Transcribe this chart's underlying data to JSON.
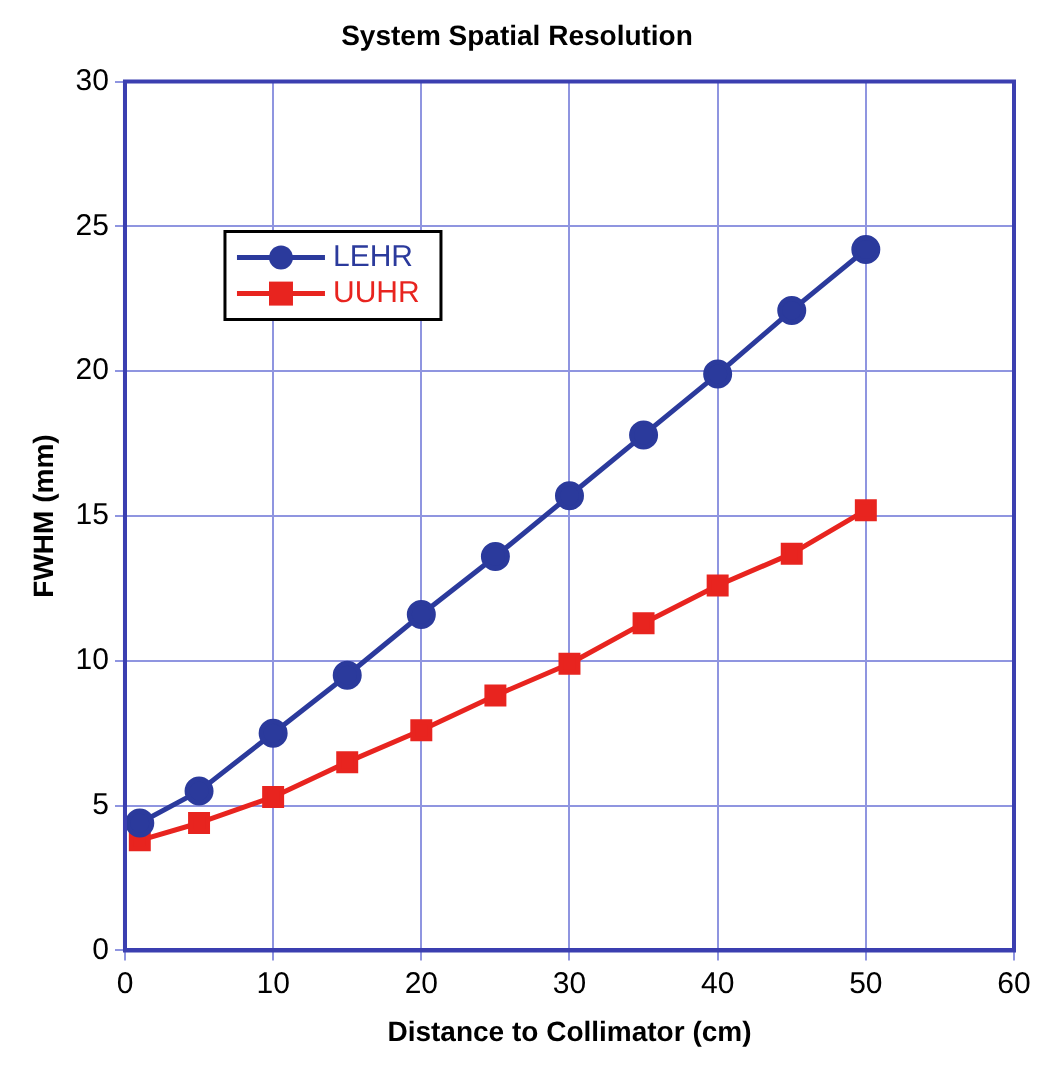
{
  "chart_data": {
    "type": "line",
    "title": "System Spatial Resolution",
    "xlabel": "Distance to Collimator (cm)",
    "ylabel": "FWHM (mm)",
    "x": [
      1,
      5,
      10,
      15,
      20,
      25,
      30,
      35,
      40,
      45,
      50
    ],
    "series": [
      {
        "name": "LEHR",
        "color": "#2b3a9c",
        "marker": "circle",
        "values": [
          4.4,
          5.5,
          7.5,
          9.5,
          11.6,
          13.6,
          15.7,
          17.8,
          19.9,
          22.1,
          24.2
        ]
      },
      {
        "name": "UUHR",
        "color": "#e8241f",
        "marker": "square",
        "values": [
          3.8,
          4.4,
          5.3,
          6.5,
          7.6,
          8.8,
          9.9,
          11.3,
          12.6,
          13.7,
          15.2
        ]
      }
    ],
    "xlim": [
      0,
      60
    ],
    "xticks": [
      0,
      10,
      20,
      30,
      40,
      50,
      60
    ],
    "ylim": [
      0,
      30
    ],
    "yticks": [
      0,
      5,
      10,
      15,
      20,
      25,
      30
    ],
    "grid": true,
    "legend": "top left",
    "line_style": "solid"
  }
}
